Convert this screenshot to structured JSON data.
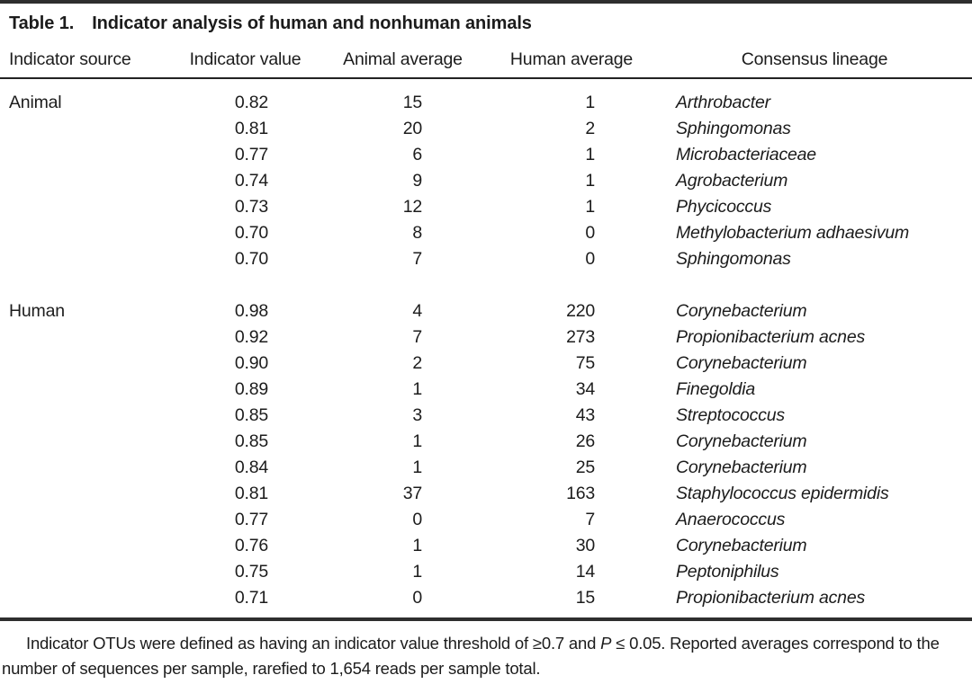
{
  "page": {
    "background": "#ffffff",
    "text_color": "#1c1c1c",
    "rule_color": "#2e2e2e"
  },
  "table": {
    "title_label": "Table 1.",
    "title": "Indicator analysis of human and nonhuman animals",
    "columns": [
      "Indicator source",
      "Indicator value",
      "Animal average",
      "Human average",
      "Consensus lineage"
    ],
    "sections": [
      {
        "source": "Animal",
        "rows": [
          {
            "indicator_value": "0.82",
            "animal_average": "15",
            "human_average": "1",
            "consensus_lineage": "Arthrobacter"
          },
          {
            "indicator_value": "0.81",
            "animal_average": "20",
            "human_average": "2",
            "consensus_lineage": "Sphingomonas"
          },
          {
            "indicator_value": "0.77",
            "animal_average": "6",
            "human_average": "1",
            "consensus_lineage": "Microbacteriaceae"
          },
          {
            "indicator_value": "0.74",
            "animal_average": "9",
            "human_average": "1",
            "consensus_lineage": "Agrobacterium"
          },
          {
            "indicator_value": "0.73",
            "animal_average": "12",
            "human_average": "1",
            "consensus_lineage": "Phycicoccus"
          },
          {
            "indicator_value": "0.70",
            "animal_average": "8",
            "human_average": "0",
            "consensus_lineage": "Methylobacterium adhaesivum"
          },
          {
            "indicator_value": "0.70",
            "animal_average": "7",
            "human_average": "0",
            "consensus_lineage": "Sphingomonas"
          }
        ]
      },
      {
        "source": "Human",
        "rows": [
          {
            "indicator_value": "0.98",
            "animal_average": "4",
            "human_average": "220",
            "consensus_lineage": "Corynebacterium"
          },
          {
            "indicator_value": "0.92",
            "animal_average": "7",
            "human_average": "273",
            "consensus_lineage": "Propionibacterium acnes"
          },
          {
            "indicator_value": "0.90",
            "animal_average": "2",
            "human_average": "75",
            "consensus_lineage": "Corynebacterium"
          },
          {
            "indicator_value": "0.89",
            "animal_average": "1",
            "human_average": "34",
            "consensus_lineage": "Finegoldia"
          },
          {
            "indicator_value": "0.85",
            "animal_average": "3",
            "human_average": "43",
            "consensus_lineage": "Streptococcus"
          },
          {
            "indicator_value": "0.85",
            "animal_average": "1",
            "human_average": "26",
            "consensus_lineage": "Corynebacterium"
          },
          {
            "indicator_value": "0.84",
            "animal_average": "1",
            "human_average": "25",
            "consensus_lineage": "Corynebacterium"
          },
          {
            "indicator_value": "0.81",
            "animal_average": "37",
            "human_average": "163",
            "consensus_lineage": "Staphylococcus epidermidis"
          },
          {
            "indicator_value": "0.77",
            "animal_average": "0",
            "human_average": "7",
            "consensus_lineage": "Anaerococcus"
          },
          {
            "indicator_value": "0.76",
            "animal_average": "1",
            "human_average": "30",
            "consensus_lineage": "Corynebacterium"
          },
          {
            "indicator_value": "0.75",
            "animal_average": "1",
            "human_average": "14",
            "consensus_lineage": "Peptoniphilus"
          },
          {
            "indicator_value": "0.71",
            "animal_average": "0",
            "human_average": "15",
            "consensus_lineage": "Propionibacterium acnes"
          }
        ]
      }
    ],
    "footnote": {
      "before_p": "Indicator OTUs were defined as having an indicator value threshold of ≥0.7 and ",
      "p_symbol": "P",
      "after_p": " ≤ 0.05. Reported averages correspond to the number of sequences per sample, rarefied to 1,654 reads per sample total."
    }
  }
}
